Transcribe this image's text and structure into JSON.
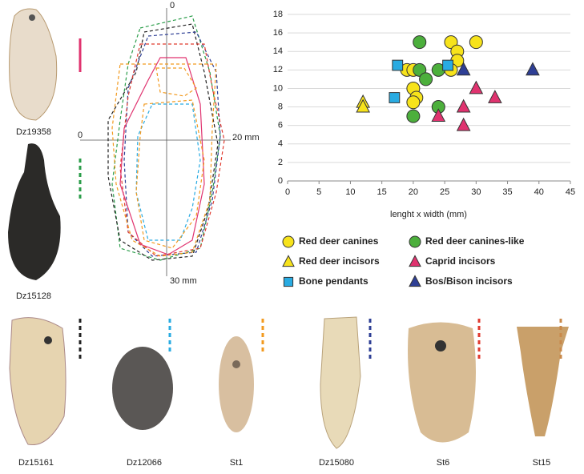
{
  "chart_data": {
    "type": "scatter",
    "x_label": "lenght x width (mm)",
    "xlim": [
      0,
      45
    ],
    "xticks": [
      0,
      5,
      10,
      15,
      20,
      25,
      30,
      35,
      40,
      45
    ],
    "ylim": [
      0,
      18
    ],
    "yticks": [
      0,
      2,
      4,
      6,
      8,
      10,
      12,
      14,
      16,
      18
    ],
    "grid": true,
    "series": [
      {
        "name": "Red deer canines",
        "color": "#f7e31b",
        "marker": "circle",
        "x": [
          19,
          20,
          20,
          20.5,
          20,
          26,
          27,
          27,
          26,
          30
        ],
        "values": [
          12,
          12,
          10,
          9,
          8.5,
          15,
          14,
          13,
          12,
          15
        ]
      },
      {
        "name": "Red deer canines-like",
        "color": "#4caf3c",
        "marker": "circle",
        "x": [
          21,
          21,
          22,
          24,
          24,
          20
        ],
        "values": [
          15,
          12,
          11,
          12,
          8,
          7
        ]
      },
      {
        "name": "Red deer incisors",
        "color": "#f7e31b",
        "marker": "triangle",
        "x": [
          12,
          12
        ],
        "values": [
          8.5,
          8
        ]
      },
      {
        "name": "Caprid incisors",
        "color": "#e0336f",
        "marker": "triangle",
        "x": [
          24,
          30,
          28,
          33,
          28
        ],
        "values": [
          7,
          10,
          8,
          9,
          6
        ]
      },
      {
        "name": "Bone pendants",
        "color": "#29abe2",
        "marker": "square",
        "x": [
          17,
          17.5,
          25.5
        ],
        "values": [
          9,
          12.5,
          12.5
        ]
      },
      {
        "name": "Bos/Bison incisors",
        "color": "#2e3f95",
        "marker": "triangle",
        "x": [
          28,
          39
        ],
        "values": [
          12,
          12
        ]
      }
    ]
  },
  "outline_diagram": {
    "top_zero": "0",
    "left_zero": "0",
    "right_mark": "20 mm",
    "bottom_mark": "30 mm"
  },
  "specimens": [
    "Dz19358",
    "Dz15128",
    "Dz15161",
    "Dz12066",
    "St1",
    "Dz15080",
    "St6",
    "St15"
  ]
}
